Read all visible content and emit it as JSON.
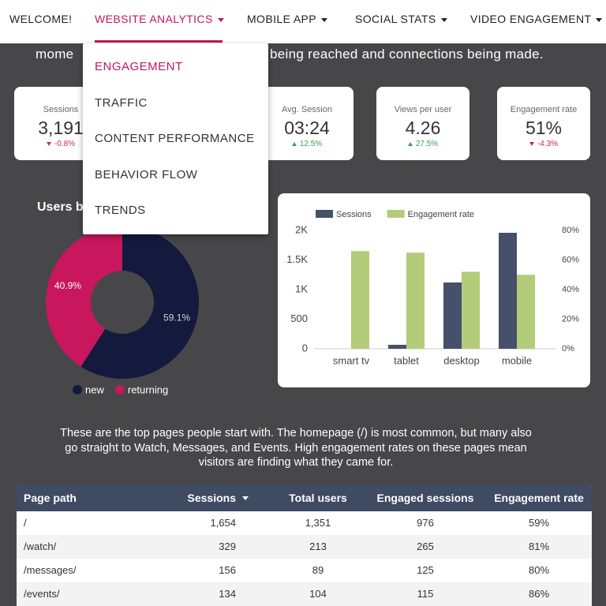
{
  "nav": {
    "items": [
      "WELCOME!",
      "WEBSITE ANALYTICS",
      "MOBILE APP",
      "SOCIAL STATS",
      "VIDEO ENGAGEMENT"
    ],
    "active": 1
  },
  "dropdown": {
    "items": [
      "ENGAGEMENT",
      "TRAFFIC",
      "CONTENT PERFORMANCE",
      "BEHAVIOR FLOW",
      "TRENDS"
    ],
    "active": 0
  },
  "intro": [
    "mome",
    "being reached and connections being made."
  ],
  "kpis": [
    {
      "label": "Sessions",
      "value": "3,191",
      "change": "-0.8%",
      "trend": "down"
    },
    {
      "label": "Avg. Session",
      "value": "03:24",
      "change": "12.5%",
      "trend": "up"
    },
    {
      "label": "Views per user",
      "value": "4.26",
      "change": "27.5%",
      "trend": "up"
    },
    {
      "label": "Engagement rate",
      "value": "51%",
      "change": "-4.3%",
      "trend": "down"
    }
  ],
  "chart_data": [
    {
      "type": "pie",
      "title": "Users b",
      "donut": true,
      "categories": [
        "new",
        "returning"
      ],
      "values": [
        59.1,
        40.9
      ],
      "value_labels": [
        "59.1%",
        "40.9%"
      ],
      "colors": [
        "#141a3e",
        "#c8175d"
      ],
      "legend": "bottom"
    },
    {
      "type": "bar",
      "categories": [
        "smart tv",
        "tablet",
        "desktop",
        "mobile"
      ],
      "series": [
        {
          "name": "Sessions",
          "color": "#46506a",
          "values": [
            0,
            67,
            1120,
            1960
          ]
        },
        {
          "name": "Engagement rate",
          "color": "#b3cc7a",
          "axis": "y2",
          "values": [
            66,
            65,
            52,
            50
          ]
        }
      ],
      "ylim": [
        0,
        2000
      ],
      "yticks": [
        0,
        500,
        {
          "value": 1000,
          "label": "1K"
        },
        {
          "value": 1500,
          "label": "1.5K"
        },
        {
          "value": 2000,
          "label": "2K"
        }
      ],
      "y2lim": [
        0,
        80
      ],
      "y2ticks": [
        {
          "value": 0,
          "label": "0%"
        },
        {
          "value": 20,
          "label": "20%"
        },
        {
          "value": 40,
          "label": "40%"
        },
        {
          "value": 60,
          "label": "60%"
        },
        {
          "value": 80,
          "label": "80%"
        }
      ],
      "legend": "top-left",
      "grid": false
    }
  ],
  "summary": "These are the top pages people start with. The homepage (/) is most common, but many also go straight to Watch, Messages, and Events. High engagement rates on these pages mean visitors are finding what they came for.",
  "table": {
    "columns": [
      "Page path",
      "Sessions",
      "Total users",
      "Engaged sessions",
      "Engagement rate"
    ],
    "sort_column": 1,
    "rows": [
      [
        "/",
        "1,654",
        "1,351",
        "976",
        "59%"
      ],
      [
        "/watch/",
        "329",
        "213",
        "265",
        "81%"
      ],
      [
        "/messages/",
        "156",
        "89",
        "125",
        "80%"
      ],
      [
        "/events/",
        "134",
        "104",
        "115",
        "86%"
      ]
    ]
  }
}
